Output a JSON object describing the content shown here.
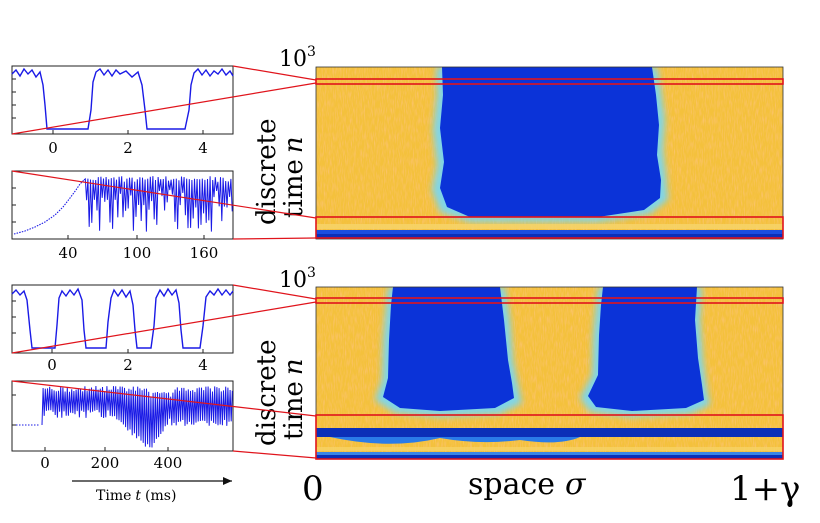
{
  "colors": {
    "trace": "#1a1ae6",
    "highlight": "#e0141c",
    "heat_low": "#0a2fd6",
    "heat_high": "#f3c53a"
  },
  "chart_data": [
    {
      "id": "top-heatmap",
      "type": "heatmap",
      "y_top_label": "10",
      "y_top_exp": "3",
      "ylabel_line1": "discrete",
      "ylabel_line2": "time",
      "ylabel_var": "n",
      "low_bands_sigma": [
        [
          0.26,
          0.64
        ]
      ],
      "highlight_rows": [
        "top",
        "bottom"
      ]
    },
    {
      "id": "bottom-heatmap",
      "type": "heatmap",
      "y_top_label": "10",
      "y_top_exp": "3",
      "ylabel_line1": "discrete",
      "ylabel_line2": "time",
      "ylabel_var": "n",
      "xlabel_word": "space",
      "xlabel_var": "σ",
      "x_start_label": "0",
      "x_end_label": "1+γ",
      "low_bands_sigma": [
        [
          0.16,
          0.41
        ],
        [
          0.6,
          0.85
        ]
      ],
      "highlight_rows": [
        "top",
        "bottom"
      ]
    },
    {
      "id": "inset-1",
      "type": "line",
      "x_ticks": [
        "0",
        "2",
        "4"
      ],
      "signal": "square-wave",
      "periods": 2
    },
    {
      "id": "inset-2",
      "type": "line",
      "x_ticks": [
        "40",
        "100",
        "160"
      ],
      "signal": "ramp-then-oscillation"
    },
    {
      "id": "inset-3",
      "type": "line",
      "x_ticks": [
        "0",
        "2",
        "4"
      ],
      "signal": "square-wave",
      "periods": 4
    },
    {
      "id": "inset-4",
      "type": "line",
      "x_ticks": [
        "0",
        "200",
        "400"
      ],
      "signal": "oscillation-with-dips",
      "xlabel": "Time",
      "xlabel_var": "t",
      "xlabel_unit": "(ms)"
    }
  ]
}
